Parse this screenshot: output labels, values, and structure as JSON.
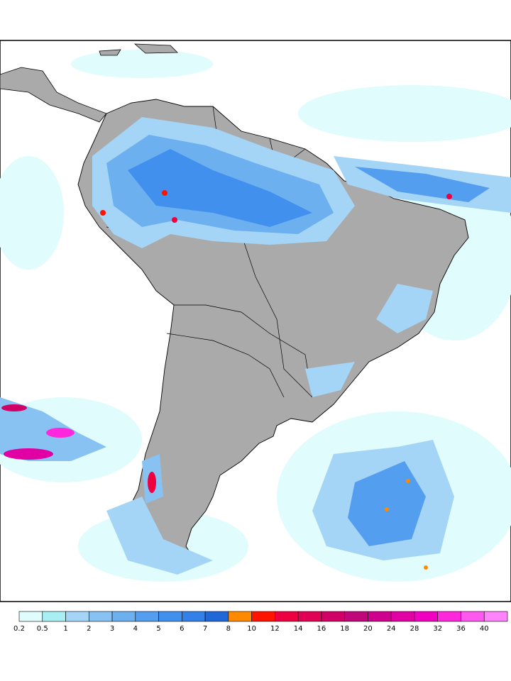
{
  "legend": {
    "levels": [
      0.2,
      0.5,
      1,
      2,
      3,
      4,
      5,
      6,
      7,
      8,
      10,
      12,
      14,
      16,
      18,
      20,
      24,
      28,
      32,
      36,
      40
    ],
    "colors": [
      "#e0fcfc",
      "#a8eef2",
      "#a4d4f6",
      "#88c2f2",
      "#6cb0f0",
      "#549ef0",
      "#4290ee",
      "#3280e8",
      "#2068d8",
      "#ff8a00",
      "#ff1400",
      "#ee0040",
      "#e00054",
      "#d00066",
      "#c0087a",
      "#d0008e",
      "#e000a4",
      "#f000c0",
      "#ff28dc",
      "#ff58ee",
      "#ff84fc"
    ]
  }
}
